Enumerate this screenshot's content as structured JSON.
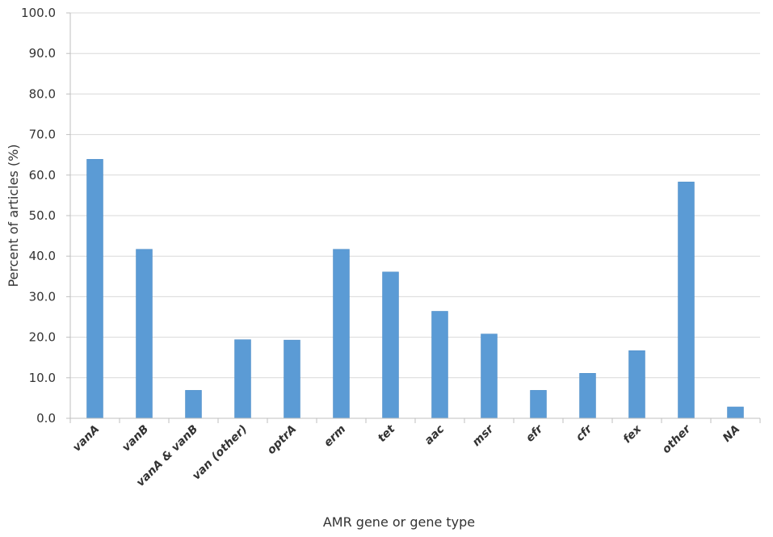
{
  "chart_data": {
    "type": "bar",
    "categories": [
      "vanA",
      "vanB",
      "vanA & vanB",
      "van (other)",
      "optrA",
      "erm",
      "tet",
      "aac",
      "msr",
      "efr",
      "cfr",
      "fex",
      "other",
      "NA"
    ],
    "series": [
      {
        "values": [
          63.9,
          41.7,
          6.9,
          19.4,
          19.3,
          41.7,
          36.1,
          26.4,
          20.8,
          6.9,
          11.1,
          16.7,
          58.3,
          2.8
        ]
      }
    ],
    "title": "",
    "xlabel": "AMR gene or gene type",
    "ylabel": "Percent of articles (%)",
    "ylim": [
      0,
      100
    ],
    "yticks": [
      "0.0",
      "10.0",
      "20.0",
      "30.0",
      "40.0",
      "50.0",
      "60.0",
      "70.0",
      "80.0",
      "90.0",
      "100.0"
    ],
    "grid": true,
    "legend": "none",
    "colors": {
      "bar": "#5b9bd5",
      "grid": "#d9d9d9",
      "axis": "#bfbfbf",
      "text": "#333333"
    }
  }
}
